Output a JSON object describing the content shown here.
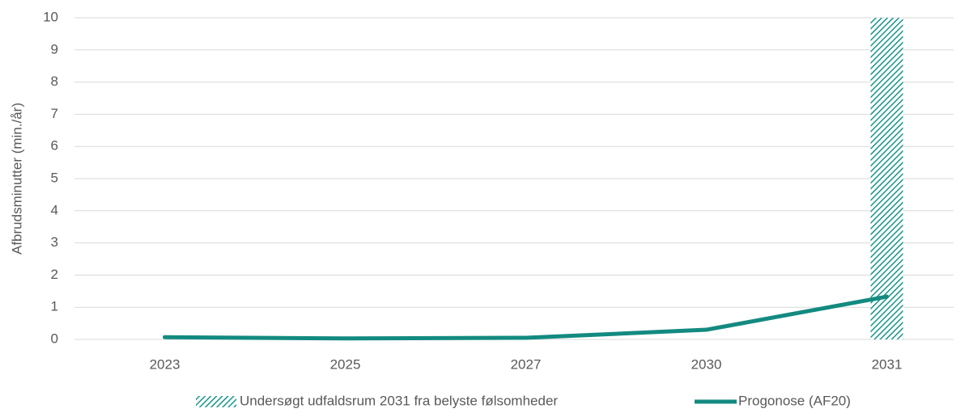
{
  "chart_data": {
    "type": "line",
    "y_label": "Afbrudsminutter (min./år)",
    "categories": [
      "2023",
      "2025",
      "2027",
      "2030",
      "2031"
    ],
    "series": [
      {
        "name": "Undersøgt udfaldsrum 2031 fra belyste følsomheder",
        "type": "bar",
        "color": "#179689",
        "values": [
          null,
          null,
          null,
          null,
          10
        ]
      },
      {
        "name": "Progonose (AF20)",
        "type": "line",
        "color": "#138a80",
        "values": [
          0.07,
          0.03,
          0.05,
          0.3,
          1.33
        ]
      }
    ],
    "ylim": [
      0,
      10
    ],
    "yticks": [
      0,
      1,
      2,
      3,
      4,
      5,
      6,
      7,
      8,
      9,
      10
    ],
    "grid": true,
    "legend": "bottom"
  }
}
